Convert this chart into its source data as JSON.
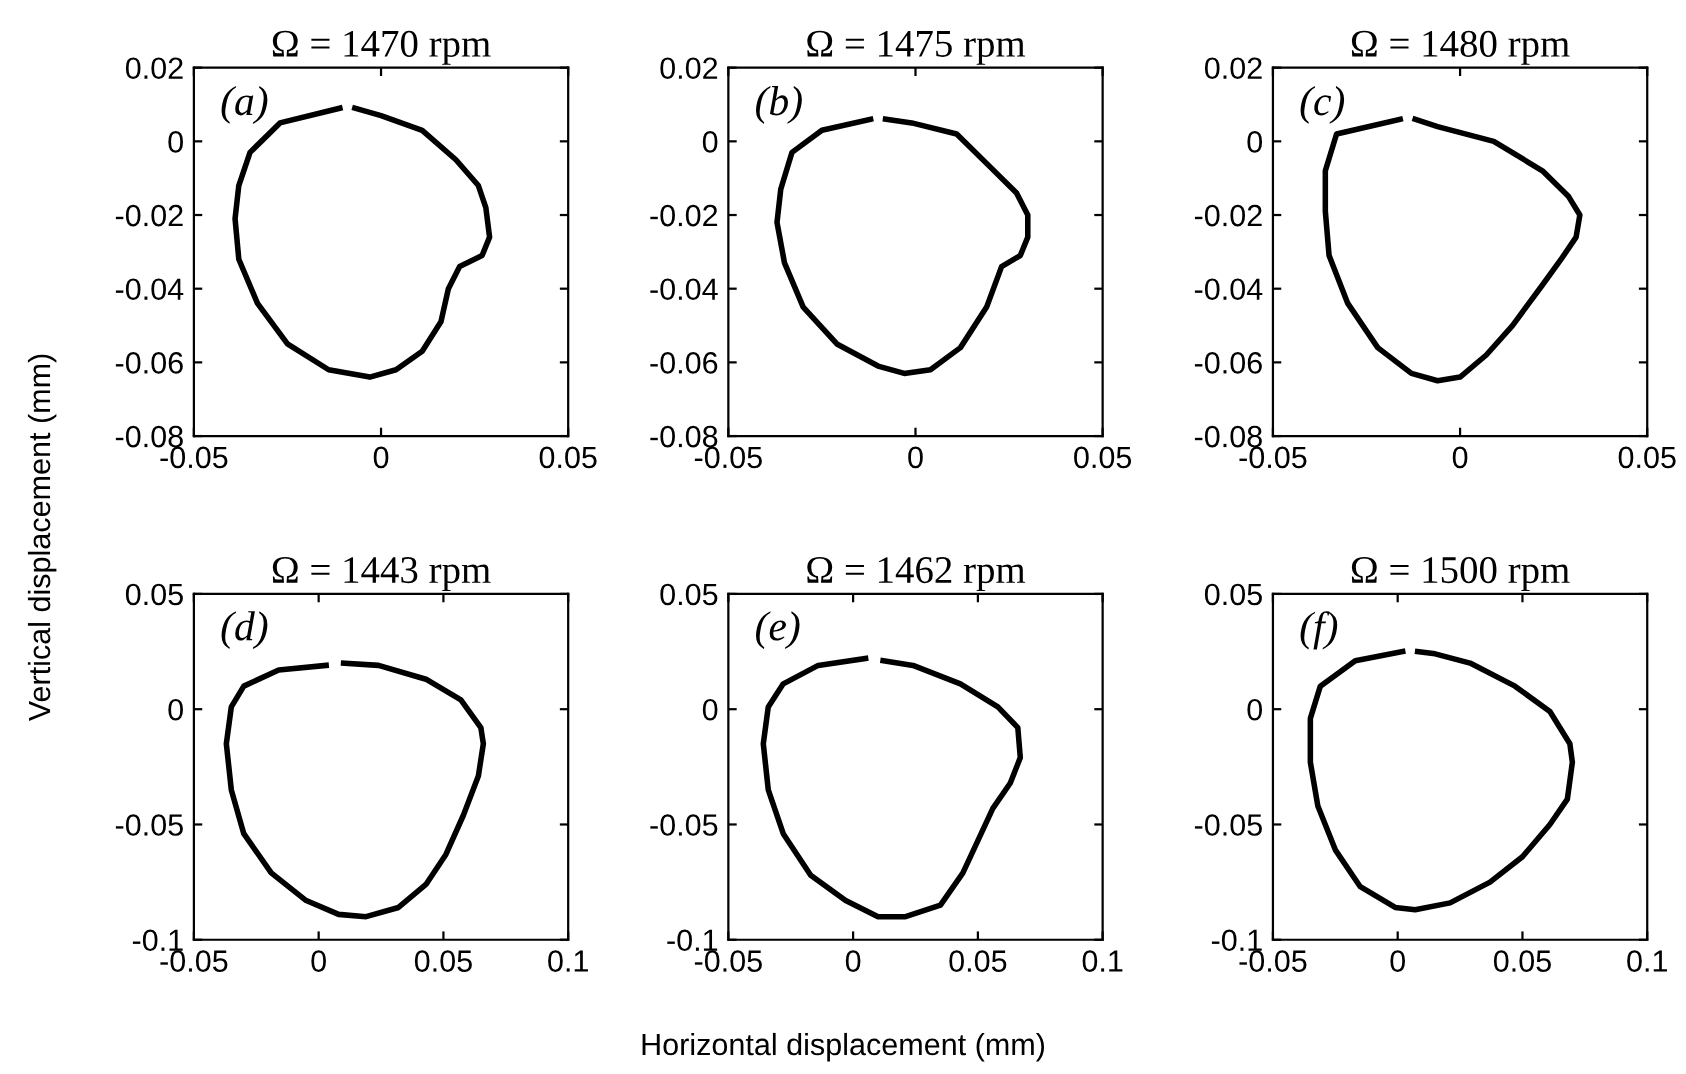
{
  "chart_data": [
    {
      "type": "line",
      "title": "Ω = 1470 rpm",
      "ylabel": "Vertical displacement (mm)",
      "annotations": [
        "(a)"
      ],
      "xlim": [
        -0.05,
        0.05
      ],
      "xticks": [
        -0.05,
        0,
        0.05
      ],
      "ylim": [
        -0.08,
        0.02
      ],
      "yticks": [
        -0.08,
        -0.06,
        -0.04,
        -0.02,
        0,
        0.02
      ],
      "grid": false,
      "marker": "none",
      "series": [
        {
          "color": "#000000",
          "x": [
            -0.011,
            -0.027,
            -0.035,
            -0.038,
            -0.039,
            -0.038,
            -0.033,
            -0.025,
            -0.014,
            -0.003,
            0.004,
            0.011,
            0.016,
            0.018,
            0.021,
            0.027,
            0.029,
            0.028,
            0.026,
            0.02,
            0.011,
            0.0,
            -0.007
          ],
          "values": [
            0.009,
            0.005,
            -0.003,
            -0.012,
            -0.021,
            -0.032,
            -0.044,
            -0.055,
            -0.062,
            -0.064,
            -0.062,
            -0.057,
            -0.049,
            -0.04,
            -0.034,
            -0.031,
            -0.026,
            -0.018,
            -0.012,
            -0.005,
            0.003,
            0.007,
            0.009
          ]
        }
      ]
    },
    {
      "type": "line",
      "title": "Ω = 1475 rpm",
      "annotations": [
        "(b)"
      ],
      "xlim": [
        -0.05,
        0.05
      ],
      "xticks": [
        -0.05,
        0,
        0.05
      ],
      "ylim": [
        -0.08,
        0.02
      ],
      "yticks": [
        -0.08,
        -0.06,
        -0.04,
        -0.02,
        0,
        0.02
      ],
      "grid": false,
      "marker": "none",
      "series": [
        {
          "color": "#000000",
          "x": [
            -0.012,
            -0.025,
            -0.033,
            -0.036,
            -0.037,
            -0.035,
            -0.03,
            -0.021,
            -0.01,
            -0.003,
            0.004,
            0.012,
            0.019,
            0.023,
            0.028,
            0.03,
            0.03,
            0.027,
            0.02,
            0.011,
            -0.001,
            -0.008
          ],
          "values": [
            0.006,
            0.003,
            -0.003,
            -0.013,
            -0.022,
            -0.033,
            -0.045,
            -0.055,
            -0.061,
            -0.063,
            -0.062,
            -0.056,
            -0.045,
            -0.034,
            -0.031,
            -0.026,
            -0.02,
            -0.014,
            -0.007,
            0.002,
            0.005,
            0.006
          ]
        }
      ]
    },
    {
      "type": "line",
      "title": "Ω = 1480 rpm",
      "annotations": [
        "(c)"
      ],
      "xlim": [
        -0.05,
        0.05
      ],
      "xticks": [
        -0.05,
        0,
        0.05
      ],
      "ylim": [
        -0.08,
        0.02
      ],
      "yticks": [
        -0.08,
        -0.06,
        -0.04,
        -0.02,
        0,
        0.02
      ],
      "grid": false,
      "marker": "none",
      "series": [
        {
          "color": "#000000",
          "x": [
            -0.016,
            -0.033,
            -0.036,
            -0.036,
            -0.035,
            -0.03,
            -0.022,
            -0.013,
            -0.006,
            0.0,
            0.007,
            0.014,
            0.022,
            0.027,
            0.031,
            0.032,
            0.029,
            0.022,
            0.009,
            -0.006,
            -0.012
          ],
          "values": [
            0.006,
            0.002,
            -0.008,
            -0.019,
            -0.031,
            -0.044,
            -0.056,
            -0.063,
            -0.065,
            -0.064,
            -0.058,
            -0.05,
            -0.039,
            -0.032,
            -0.026,
            -0.02,
            -0.015,
            -0.008,
            0.0,
            0.004,
            0.006
          ]
        }
      ]
    },
    {
      "type": "line",
      "title": "Ω = 1443 rpm",
      "annotations": [
        "(d)"
      ],
      "xlim": [
        -0.05,
        0.1
      ],
      "xticks": [
        -0.05,
        0,
        0.05,
        0.1
      ],
      "ylim": [
        -0.1,
        0.05
      ],
      "yticks": [
        -0.1,
        -0.05,
        0,
        0.05
      ],
      "grid": false,
      "marker": "none",
      "series": [
        {
          "color": "#000000",
          "x": [
            0.003,
            -0.016,
            -0.03,
            -0.035,
            -0.037,
            -0.035,
            -0.03,
            -0.019,
            -0.005,
            0.008,
            0.019,
            0.032,
            0.043,
            0.051,
            0.058,
            0.064,
            0.066,
            0.065,
            0.057,
            0.043,
            0.024,
            0.01
          ],
          "values": [
            0.019,
            0.017,
            0.01,
            0.001,
            -0.015,
            -0.035,
            -0.054,
            -0.071,
            -0.083,
            -0.089,
            -0.09,
            -0.086,
            -0.076,
            -0.063,
            -0.046,
            -0.029,
            -0.015,
            -0.008,
            0.004,
            0.013,
            0.019,
            0.02
          ]
        }
      ]
    },
    {
      "type": "line",
      "title": "Ω = 1462 rpm",
      "xlabel": "Horizontal displacement (mm)",
      "annotations": [
        "(e)"
      ],
      "xlim": [
        -0.05,
        0.1
      ],
      "xticks": [
        -0.05,
        0,
        0.05,
        0.1
      ],
      "ylim": [
        -0.1,
        0.05
      ],
      "yticks": [
        -0.1,
        -0.05,
        0,
        0.05
      ],
      "grid": false,
      "marker": "none",
      "series": [
        {
          "color": "#000000",
          "x": [
            0.005,
            -0.014,
            -0.028,
            -0.034,
            -0.036,
            -0.034,
            -0.028,
            -0.017,
            -0.003,
            0.01,
            0.021,
            0.035,
            0.044,
            0.05,
            0.056,
            0.063,
            0.067,
            0.066,
            0.058,
            0.043,
            0.024,
            0.012
          ],
          "values": [
            0.022,
            0.019,
            0.011,
            0.001,
            -0.015,
            -0.035,
            -0.054,
            -0.072,
            -0.083,
            -0.09,
            -0.09,
            -0.085,
            -0.071,
            -0.057,
            -0.043,
            -0.032,
            -0.021,
            -0.008,
            0.001,
            0.011,
            0.019,
            0.021
          ]
        }
      ]
    },
    {
      "type": "line",
      "title": "Ω = 1500 rpm",
      "annotations": [
        "(f)"
      ],
      "xlim": [
        -0.05,
        0.1
      ],
      "xticks": [
        -0.05,
        0,
        0.05,
        0.1
      ],
      "ylim": [
        -0.1,
        0.05
      ],
      "yticks": [
        -0.1,
        -0.05,
        0,
        0.05
      ],
      "grid": false,
      "marker": "none",
      "series": [
        {
          "color": "#000000",
          "x": [
            0.002,
            -0.017,
            -0.031,
            -0.035,
            -0.035,
            -0.032,
            -0.025,
            -0.015,
            -0.001,
            0.007,
            0.021,
            0.037,
            0.05,
            0.061,
            0.068,
            0.07,
            0.069,
            0.061,
            0.047,
            0.029,
            0.015,
            0.008
          ],
          "values": [
            0.025,
            0.021,
            0.01,
            -0.004,
            -0.023,
            -0.042,
            -0.061,
            -0.077,
            -0.086,
            -0.087,
            -0.084,
            -0.075,
            -0.064,
            -0.05,
            -0.039,
            -0.023,
            -0.015,
            -0.001,
            0.01,
            0.02,
            0.024,
            0.025
          ]
        }
      ]
    }
  ]
}
